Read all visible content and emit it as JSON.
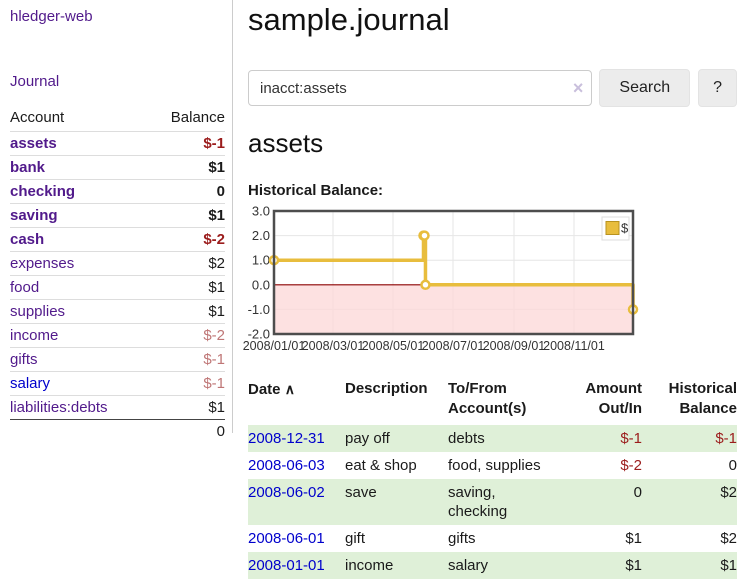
{
  "sidebar": {
    "brand": "hledger-web",
    "nav_journal": "Journal",
    "accounts_table": {
      "col_account": "Account",
      "col_balance": "Balance",
      "rows": [
        {
          "account": "assets",
          "balance": "$-1",
          "indent": 1,
          "bold": true,
          "name_color": "purple",
          "balance_color": "neg-strong"
        },
        {
          "account": "bank",
          "balance": "$1",
          "indent": 2,
          "bold": true,
          "name_color": "purple",
          "balance_color": "black"
        },
        {
          "account": "checking",
          "balance": "0",
          "indent": 3,
          "bold": true,
          "name_color": "purple",
          "balance_color": "black"
        },
        {
          "account": "saving",
          "balance": "$1",
          "indent": 3,
          "bold": true,
          "name_color": "purple",
          "balance_color": "black"
        },
        {
          "account": "cash",
          "balance": "$-2",
          "indent": 2,
          "bold": true,
          "name_color": "purple",
          "balance_color": "neg-strong"
        },
        {
          "account": "expenses",
          "balance": "$2",
          "indent": 1,
          "bold": false,
          "name_color": "purple",
          "balance_color": "black"
        },
        {
          "account": "food",
          "balance": "$1",
          "indent": 2,
          "bold": false,
          "name_color": "purple",
          "balance_color": "black"
        },
        {
          "account": "supplies",
          "balance": "$1",
          "indent": 2,
          "bold": false,
          "name_color": "purple",
          "balance_color": "black"
        },
        {
          "account": "income",
          "balance": "$-2",
          "indent": 1,
          "bold": false,
          "name_color": "purple",
          "balance_color": "neg-soft"
        },
        {
          "account": "gifts",
          "balance": "$-1",
          "indent": 2,
          "bold": false,
          "name_color": "purple",
          "balance_color": "neg-soft"
        },
        {
          "account": "salary",
          "balance": "$-1",
          "indent": 2,
          "bold": false,
          "name_color": "blue",
          "balance_color": "neg-soft"
        },
        {
          "account": "liabilities:debts",
          "balance": "$1",
          "indent": 1,
          "bold": false,
          "name_color": "purple",
          "balance_color": "black"
        }
      ],
      "total": "0"
    }
  },
  "main": {
    "title": "sample.journal",
    "search": {
      "value": "inacct:assets",
      "clear_icon": "×",
      "search_button": "Search",
      "help_button": "?"
    },
    "account_heading": "assets",
    "chart_label": "Historical Balance:"
  },
  "chart_data": {
    "type": "line",
    "step": true,
    "series": [
      {
        "name": "$",
        "points": [
          {
            "date": "2008-01-01",
            "value": 1
          },
          {
            "date": "2008-06-01",
            "value": 2
          },
          {
            "date": "2008-06-02",
            "value": 2
          },
          {
            "date": "2008-06-03",
            "value": 0
          },
          {
            "date": "2008-12-31",
            "value": -1
          }
        ]
      }
    ],
    "x_range": [
      "2008-01-01",
      "2008-12-31"
    ],
    "x_ticks": [
      {
        "date": "2008-01-01",
        "label": "2008/01/01"
      },
      {
        "date": "2008-03-01",
        "label": "2008/03/01"
      },
      {
        "date": "2008-05-01",
        "label": "2008/05/01"
      },
      {
        "date": "2008-07-01",
        "label": "2008/07/01"
      },
      {
        "date": "2008-09-01",
        "label": "2008/09/01"
      },
      {
        "date": "2008-11-01",
        "label": "2008/11/01"
      }
    ],
    "y_ticks": [
      {
        "value": 3,
        "label": "3.0"
      },
      {
        "value": 2,
        "label": "2.0"
      },
      {
        "value": 1,
        "label": "1.0"
      },
      {
        "value": 0,
        "label": "0.0"
      },
      {
        "value": -1,
        "label": "-1.0"
      },
      {
        "value": -2,
        "label": "-2.0"
      }
    ],
    "ylim": [
      -2,
      3
    ],
    "legend": {
      "position": "ne",
      "label": "$"
    },
    "grid": true,
    "colors": {
      "line": "#e8bd3d",
      "marker_fill": "#ffffff",
      "negative_region": "#fcd9d9",
      "zero_line": "#8b0000",
      "grid_line": "#e6e6e6",
      "border": "#4d4d4d",
      "legend_swatch": "#e8bd3d",
      "legend_swatch_border": "#b8921f"
    }
  },
  "register_table": {
    "headers": {
      "date": "Date",
      "sort_caret": "∧",
      "description": "Description",
      "accounts": "To/From Account(s)",
      "amount": "Amount Out/In",
      "balance": "Historical Balance"
    },
    "rows": [
      {
        "date": "2008-12-31",
        "description": "pay off",
        "accounts": "debts",
        "amount": "$-1",
        "amount_neg": true,
        "balance": "$-1",
        "balance_neg": true,
        "shaded": true
      },
      {
        "date": "2008-06-03",
        "description": "eat & shop",
        "accounts": "food, supplies",
        "amount": "$-2",
        "amount_neg": true,
        "balance": "0",
        "balance_neg": false,
        "shaded": false
      },
      {
        "date": "2008-06-02",
        "description": "save",
        "accounts": "saving, checking",
        "amount": "0",
        "amount_neg": false,
        "balance": "$2",
        "balance_neg": false,
        "shaded": true
      },
      {
        "date": "2008-06-01",
        "description": "gift",
        "accounts": "gifts",
        "amount": "$1",
        "amount_neg": false,
        "balance": "$2",
        "balance_neg": false,
        "shaded": false
      },
      {
        "date": "2008-01-01",
        "description": "income",
        "accounts": "salary",
        "amount": "$1",
        "amount_neg": false,
        "balance": "$1",
        "balance_neg": false,
        "shaded": true
      }
    ]
  }
}
